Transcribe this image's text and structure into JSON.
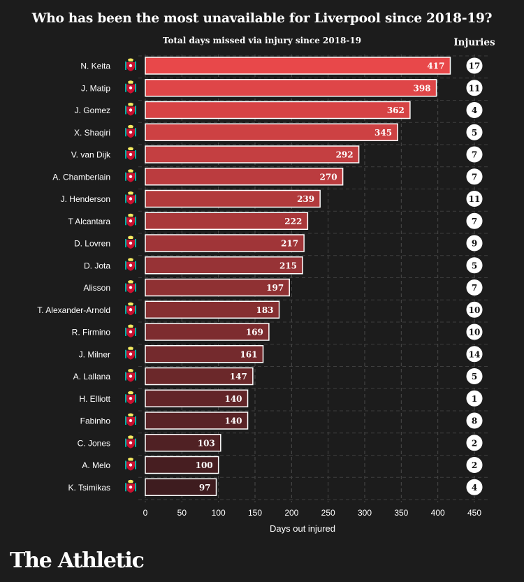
{
  "title": "Who has been the most unavailable for Liverpool since 2018-19?",
  "subtitle": "Total days missed via injury since 2018-19",
  "injuries_label": "Injuries",
  "logo": "The Athletic",
  "colors": {
    "background": "#1c1c1c",
    "bar_top": "#e8484a",
    "bar_bottom": "#3e1c1f",
    "crest": "#c8102e"
  },
  "chart_data": {
    "type": "bar",
    "orientation": "horizontal",
    "title": "Who has been the most unavailable for Liverpool since 2018-19?",
    "subtitle": "Total days missed via injury since 2018-19",
    "xlabel": "Days out injured",
    "xlim": [
      0,
      450
    ],
    "xticks": [
      0,
      50,
      100,
      150,
      200,
      250,
      300,
      350,
      400,
      450
    ],
    "grid": true,
    "categories": [
      "N. Keita",
      "J. Matip",
      "J. Gomez",
      "X. Shaqiri",
      "V. van Dijk",
      "A. Chamberlain",
      "J. Henderson",
      "T Alcantara",
      "D. Lovren",
      "D. Jota",
      "Alisson",
      "T. Alexander-Arnold",
      "R. Firmino",
      "J. Milner",
      "A. Lallana",
      "H. Elliott",
      "Fabinho",
      "C. Jones",
      "A. Melo",
      "K. Tsimikas"
    ],
    "values": [
      417,
      398,
      362,
      345,
      292,
      270,
      239,
      222,
      217,
      215,
      197,
      183,
      169,
      161,
      147,
      140,
      140,
      103,
      100,
      97
    ],
    "injuries": [
      17,
      11,
      4,
      5,
      7,
      7,
      11,
      7,
      9,
      5,
      7,
      10,
      10,
      14,
      5,
      1,
      8,
      2,
      2,
      4
    ]
  }
}
